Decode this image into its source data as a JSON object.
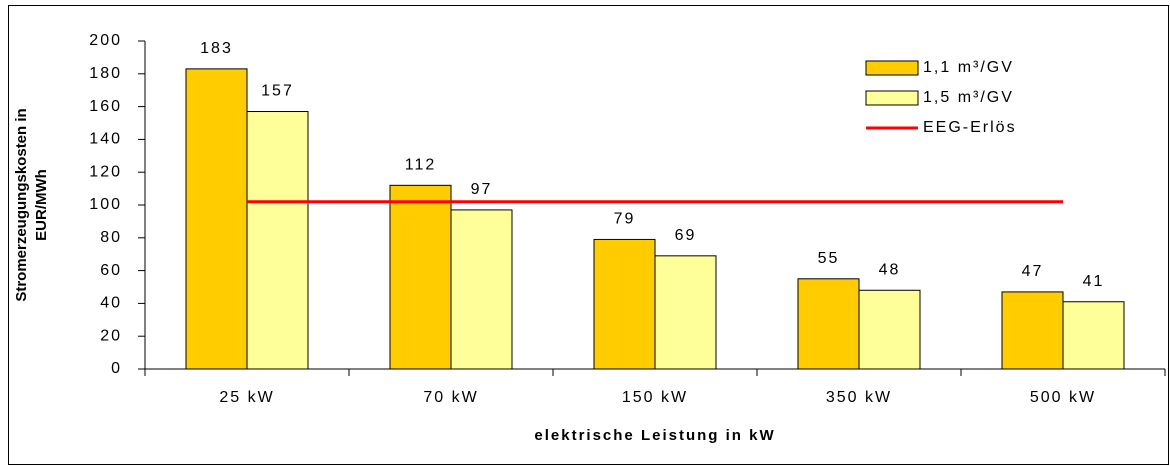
{
  "chart_data": {
    "type": "bar",
    "ylabel_lines": [
      "Stromerzeugungskosten in",
      "EUR/MWh"
    ],
    "xlabel": "elektrische Leistung in kW",
    "categories": [
      "25 kW",
      "70 kW",
      "150 kW",
      "350 kW",
      "500 kW"
    ],
    "series": [
      {
        "name": "1,1 m³/GV",
        "color": "#ffcc00",
        "values": [
          183,
          112,
          79,
          55,
          47
        ]
      },
      {
        "name": "1,5 m³/GV",
        "color": "#ffff99",
        "values": [
          157,
          97,
          69,
          48,
          41
        ]
      },
      {
        "name": "EEG-Erlös",
        "type": "line",
        "color": "#ff0000",
        "values": [
          102,
          102,
          102,
          102,
          102
        ]
      }
    ],
    "ylim": [
      0,
      200
    ],
    "yticks": [
      0,
      20,
      40,
      60,
      80,
      100,
      120,
      140,
      160,
      180,
      200
    ],
    "legend": "upper right"
  }
}
